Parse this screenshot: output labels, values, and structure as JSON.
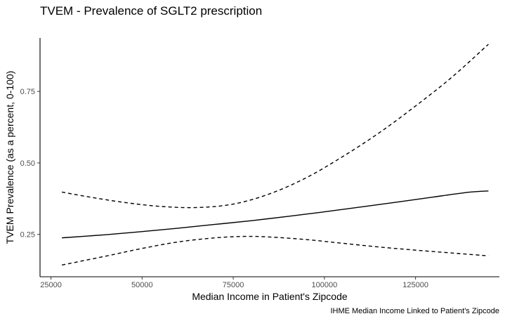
{
  "chart_data": {
    "type": "line",
    "title": "TVEM - Prevalence of SGLT2 prescription",
    "xlabel": "Median Income in Patient's Zipcode",
    "ylabel": "TVEM Prevalence (as a percent, 0-100)",
    "caption": "IHME Median Income Linked to Patient's Zipcode",
    "xlim": [
      22000,
      148000
    ],
    "ylim": [
      0.102,
      0.937
    ],
    "x_ticks": [
      25000,
      50000,
      75000,
      100000,
      125000
    ],
    "x_tick_labels": [
      "25000",
      "50000",
      "75000",
      "100000",
      "125000"
    ],
    "y_ticks": [
      0.25,
      0.5,
      0.75
    ],
    "y_tick_labels": [
      "0.25",
      "0.50",
      "0.75"
    ],
    "grid": false,
    "legend": "none",
    "series": [
      {
        "style": "solid",
        "color": "#000000",
        "x": [
          28000,
          40000,
          50000,
          60000,
          70000,
          80000,
          90000,
          100000,
          110000,
          120000,
          130000,
          140000,
          145000
        ],
        "y": [
          0.238,
          0.249,
          0.26,
          0.272,
          0.285,
          0.298,
          0.313,
          0.329,
          0.346,
          0.363,
          0.381,
          0.398,
          0.402
        ]
      },
      {
        "style": "dashed",
        "color": "#000000",
        "x": [
          28000,
          35000,
          45000,
          55000,
          65000,
          75000,
          85000,
          95000,
          105000,
          115000,
          125000,
          135000,
          145000
        ],
        "y": [
          0.398,
          0.382,
          0.362,
          0.348,
          0.344,
          0.356,
          0.392,
          0.448,
          0.522,
          0.605,
          0.699,
          0.8,
          0.915
        ]
      },
      {
        "style": "dashed",
        "color": "#000000",
        "x": [
          28000,
          40000,
          50000,
          60000,
          70000,
          78000,
          85000,
          95000,
          105000,
          115000,
          125000,
          135000,
          145000
        ],
        "y": [
          0.143,
          0.174,
          0.201,
          0.224,
          0.238,
          0.243,
          0.241,
          0.232,
          0.219,
          0.206,
          0.195,
          0.185,
          0.175
        ]
      }
    ]
  }
}
